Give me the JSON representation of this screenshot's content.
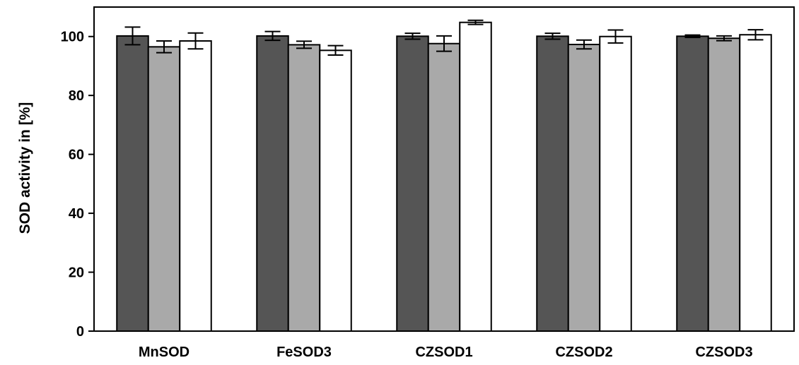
{
  "chart_data": {
    "type": "bar",
    "title": "",
    "xlabel": "",
    "ylabel": "SOD activity in [%]",
    "ylim": [
      0,
      110
    ],
    "yticks": [
      "0",
      "20",
      "40",
      "60",
      "80",
      "100"
    ],
    "grid": false,
    "legend": "none",
    "categories": [
      "MnSOD",
      "FeSOD3",
      "CZSOD1",
      "CZSOD2",
      "CZSOD3"
    ],
    "series": [
      {
        "color": "#555555",
        "values": [
          100.2,
          100.2,
          100.1,
          100.1,
          100.1
        ],
        "errors": [
          3.0,
          1.5,
          1.0,
          1.0,
          0.4
        ]
      },
      {
        "color": "#a9a9a9",
        "values": [
          96.5,
          97.2,
          97.6,
          97.3,
          99.4
        ],
        "errors": [
          2.0,
          1.2,
          2.6,
          1.5,
          0.8
        ]
      },
      {
        "color": "#ffffff",
        "values": [
          98.5,
          95.3,
          104.8,
          100.0,
          100.6
        ],
        "errors": [
          2.7,
          1.6,
          0.7,
          2.2,
          1.7
        ]
      }
    ]
  }
}
